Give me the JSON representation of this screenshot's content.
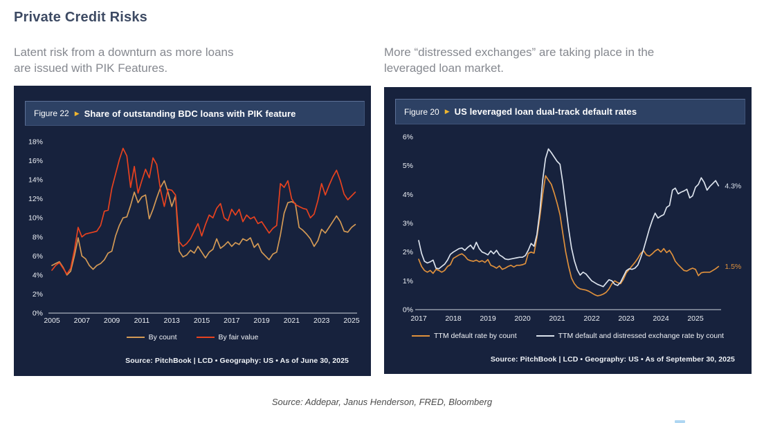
{
  "slide": {
    "title": "Private Credit Risks",
    "left_note": "Latent risk from a downturn as more loans\nare issued with PIK Features.",
    "right_note": "More “distressed exchanges” are taking place in the\nleveraged loan market.",
    "footer_source": "Source: Addepar, Janus Henderson, FRED, Bloomberg"
  },
  "colors": {
    "panel_bg": "#17223d",
    "band_bg": "#2d4164",
    "accent_yellow": "#f0b62f",
    "axis_text": "#eef1f6",
    "axis_line": "#cfd6e0",
    "gold": "#d49a55",
    "red": "#e8421f",
    "orange": "#e0913c",
    "white_line": "#dce3ed"
  },
  "chart_data": [
    {
      "type": "line",
      "figure_label": "Figure 22",
      "figure_arrow": "▶",
      "title": "Share of outstanding BDC loans with PIK feature",
      "grid": false,
      "legend_position": "bottom",
      "x_start": 2005,
      "x_step": 0.25,
      "x_ticks": [
        2005,
        2007,
        2009,
        2011,
        2013,
        2015,
        2017,
        2019,
        2021,
        2023,
        2025
      ],
      "ylim": [
        0,
        18
      ],
      "y_ticks": [
        0,
        2,
        4,
        6,
        8,
        10,
        12,
        14,
        16,
        18
      ],
      "y_tick_suffix": "%",
      "series": [
        {
          "name": "By count",
          "color": "#d49a55",
          "values": [
            5.0,
            5.2,
            5.4,
            4.8,
            4.0,
            4.4,
            6.0,
            7.9,
            6.0,
            5.7,
            5.0,
            4.6,
            5.0,
            5.2,
            5.6,
            6.3,
            6.5,
            8.1,
            9.2,
            10.0,
            10.1,
            11.3,
            12.7,
            11.6,
            12.2,
            12.4,
            9.9,
            10.9,
            12.1,
            13.2,
            13.9,
            12.7,
            11.2,
            12.3,
            6.5,
            5.9,
            6.1,
            6.6,
            6.3,
            7.0,
            6.4,
            5.8,
            6.4,
            6.7,
            7.8,
            6.8,
            7.1,
            7.5,
            7.0,
            7.4,
            7.2,
            7.8,
            7.6,
            7.9,
            6.9,
            7.3,
            6.4,
            6.0,
            5.6,
            6.2,
            6.4,
            8.2,
            10.5,
            11.6,
            11.7,
            11.5,
            9.0,
            8.7,
            8.3,
            7.8,
            7.0,
            7.6,
            8.8,
            8.4,
            9.0,
            9.6,
            10.2,
            9.6,
            8.6,
            8.5,
            9.0,
            9.3
          ]
        },
        {
          "name": "By fair value",
          "color": "#e8421f",
          "values": [
            4.5,
            5.0,
            5.3,
            4.7,
            4.1,
            4.7,
            6.6,
            9.0,
            8.0,
            8.3,
            8.4,
            8.5,
            8.6,
            9.2,
            10.7,
            10.8,
            13.1,
            14.6,
            16.1,
            17.3,
            16.5,
            13.2,
            15.4,
            12.6,
            13.9,
            15.1,
            14.2,
            16.3,
            15.6,
            12.9,
            11.2,
            13.0,
            12.9,
            12.4,
            7.5,
            7.0,
            7.3,
            7.8,
            8.6,
            9.4,
            8.1,
            9.3,
            10.3,
            10.0,
            11.0,
            11.5,
            10.0,
            9.7,
            10.9,
            10.3,
            10.9,
            9.6,
            10.3,
            9.9,
            10.1,
            9.4,
            9.6,
            9.0,
            8.4,
            8.9,
            9.2,
            13.6,
            13.2,
            13.9,
            12.0,
            11.4,
            11.2,
            11.0,
            10.9,
            10.0,
            10.4,
            11.8,
            13.6,
            12.4,
            13.4,
            14.3,
            15.0,
            13.9,
            12.5,
            11.9,
            12.3,
            12.7
          ]
        }
      ],
      "source": "Source: PitchBook | LCD  •  Geography: US  •  As of June 30, 2025"
    },
    {
      "type": "line",
      "figure_label": "Figure 20",
      "figure_arrow": "▶",
      "title": "US leveraged loan dual-track default rates",
      "grid": false,
      "legend_position": "bottom",
      "x_start": 2017,
      "x_step": 0.08333,
      "x_ticks": [
        2017,
        2018,
        2019,
        2020,
        2021,
        2022,
        2023,
        2024,
        2025
      ],
      "ylim": [
        0,
        6
      ],
      "y_ticks": [
        0,
        1,
        2,
        3,
        4,
        5,
        6
      ],
      "y_tick_suffix": "%",
      "series": [
        {
          "name": "TTM default rate by count",
          "color": "#e0913c",
          "end_label": "1.5%",
          "values": [
            1.75,
            1.5,
            1.36,
            1.3,
            1.36,
            1.26,
            1.4,
            1.36,
            1.3,
            1.36,
            1.5,
            1.56,
            1.78,
            1.84,
            1.9,
            1.94,
            1.86,
            1.74,
            1.7,
            1.68,
            1.72,
            1.66,
            1.7,
            1.64,
            1.74,
            1.54,
            1.5,
            1.44,
            1.52,
            1.4,
            1.44,
            1.5,
            1.54,
            1.48,
            1.54,
            1.54,
            1.56,
            1.6,
            1.95,
            2.0,
            1.96,
            2.5,
            3.2,
            4.0,
            4.65,
            4.5,
            4.35,
            4.05,
            3.7,
            3.3,
            2.65,
            2.0,
            1.5,
            1.1,
            0.9,
            0.78,
            0.72,
            0.7,
            0.68,
            0.64,
            0.58,
            0.52,
            0.48,
            0.5,
            0.54,
            0.6,
            0.72,
            0.9,
            1.0,
            0.94,
            0.9,
            1.05,
            1.28,
            1.4,
            1.52,
            1.64,
            1.78,
            1.95,
            2.05,
            1.9,
            1.86,
            1.94,
            2.04,
            2.1,
            2.0,
            2.12,
            1.98,
            2.06,
            1.9,
            1.68,
            1.56,
            1.46,
            1.36,
            1.34,
            1.4,
            1.44,
            1.4,
            1.18,
            1.28,
            1.3,
            1.3,
            1.3,
            1.36,
            1.42,
            1.5
          ]
        },
        {
          "name": "TTM default and distressed exchange rate by count",
          "color": "#dce3ed",
          "end_label": "4.3%",
          "values": [
            2.4,
            1.95,
            1.68,
            1.62,
            1.66,
            1.72,
            1.44,
            1.42,
            1.5,
            1.58,
            1.72,
            1.92,
            2.0,
            2.06,
            2.12,
            2.14,
            2.06,
            2.16,
            2.24,
            2.1,
            2.34,
            2.12,
            2.0,
            1.96,
            1.9,
            2.04,
            1.94,
            2.06,
            1.9,
            1.84,
            1.76,
            1.74,
            1.76,
            1.78,
            1.8,
            1.82,
            1.82,
            1.88,
            2.06,
            2.3,
            2.2,
            2.6,
            3.4,
            4.5,
            5.25,
            5.58,
            5.45,
            5.3,
            5.15,
            5.05,
            4.4,
            3.6,
            2.8,
            2.15,
            1.7,
            1.38,
            1.2,
            1.3,
            1.24,
            1.12,
            1.0,
            0.94,
            0.88,
            0.84,
            0.8,
            0.92,
            1.04,
            1.0,
            0.88,
            0.84,
            0.95,
            1.15,
            1.35,
            1.42,
            1.4,
            1.44,
            1.55,
            1.8,
            2.1,
            2.45,
            2.8,
            3.1,
            3.35,
            3.18,
            3.25,
            3.3,
            3.55,
            3.62,
            4.15,
            4.22,
            4.02,
            4.08,
            4.12,
            4.18,
            3.88,
            3.95,
            4.25,
            4.35,
            4.58,
            4.42,
            4.15,
            4.28,
            4.38,
            4.48,
            4.3
          ]
        }
      ],
      "source": "Source: PitchBook | LCD  •  Geography: US  •  As of September 30, 2025"
    }
  ]
}
